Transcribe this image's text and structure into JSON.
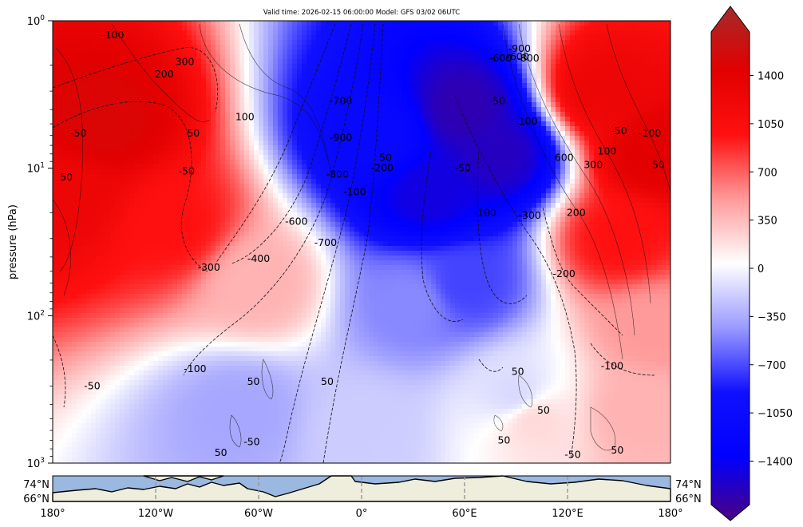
{
  "chart_data": [
    {
      "type": "heatmap",
      "title": "Valid time: 2026-02-15 06:00:00 Model: GFS 03/02 06UTC",
      "xlabel": "",
      "ylabel": "pressure (hPa)",
      "yscale": "log",
      "yinverted": true,
      "ylim": [
        1000,
        1
      ],
      "yticks": [
        {
          "value": 1,
          "label": "10^0"
        },
        {
          "value": 10,
          "label": "10^1"
        },
        {
          "value": 100,
          "label": "10^2"
        },
        {
          "value": 1000,
          "label": "10^3"
        }
      ],
      "xlim": [
        -180,
        180
      ],
      "filled_field_blobs": [
        {
          "lon": -150,
          "p": 5,
          "value": 1250
        },
        {
          "lon": -170,
          "p": 15,
          "value": 1050
        },
        {
          "lon": -110,
          "p": 25,
          "value": 800
        },
        {
          "lon": -60,
          "p": 60,
          "value": 300
        },
        {
          "lon": 40,
          "p": 15,
          "value": -1300
        },
        {
          "lon": 80,
          "p": 8,
          "value": -1400
        },
        {
          "lon": 60,
          "p": 4,
          "value": -1450
        },
        {
          "lon": 10,
          "p": 6,
          "value": -1000
        },
        {
          "lon": 60,
          "p": 60,
          "value": -650
        },
        {
          "lon": 30,
          "p": 80,
          "value": -450
        },
        {
          "lon": 140,
          "p": 3,
          "value": 1050
        },
        {
          "lon": 170,
          "p": 8,
          "value": 1200
        },
        {
          "lon": 150,
          "p": 30,
          "value": 800
        },
        {
          "lon": 170,
          "p": 120,
          "value": 400
        },
        {
          "lon": -70,
          "p": 450,
          "value": -350
        },
        {
          "lon": 0,
          "p": 600,
          "value": -200
        },
        {
          "lon": 90,
          "p": 350,
          "value": -150
        },
        {
          "lon": 100,
          "p": 500,
          "value": 150
        },
        {
          "lon": 160,
          "p": 450,
          "value": 300
        }
      ],
      "contour_labels": [
        {
          "lon": -145,
          "p": 1.25,
          "text": "-100"
        },
        {
          "lon": -103,
          "p": 1.9,
          "text": "300"
        },
        {
          "lon": -115,
          "p": 2.3,
          "text": "200"
        },
        {
          "lon": -165,
          "p": 5.8,
          "text": "-50"
        },
        {
          "lon": -68,
          "p": 4.5,
          "text": "100"
        },
        {
          "lon": -98,
          "p": 5.8,
          "text": "50"
        },
        {
          "lon": -172,
          "p": 11.5,
          "text": "50"
        },
        {
          "lon": -102,
          "p": 10.5,
          "text": "-50"
        },
        {
          "lon": -12,
          "p": 3.5,
          "text": "-700"
        },
        {
          "lon": -12,
          "p": 6.2,
          "text": "-900"
        },
        {
          "lon": 12,
          "p": 10,
          "text": "-200"
        },
        {
          "lon": 14,
          "p": 8.5,
          "text": "50"
        },
        {
          "lon": -14,
          "p": 11,
          "text": "-800"
        },
        {
          "lon": -4,
          "p": 14.5,
          "text": "-100"
        },
        {
          "lon": -38,
          "p": 23,
          "text": "-600"
        },
        {
          "lon": -21,
          "p": 32,
          "text": "-700"
        },
        {
          "lon": -60,
          "p": 41,
          "text": "-400"
        },
        {
          "lon": -89,
          "p": 47,
          "text": "-300"
        },
        {
          "lon": 81,
          "p": 1.8,
          "text": "-600"
        },
        {
          "lon": 92,
          "p": 1.55,
          "text": "-900"
        },
        {
          "lon": 91,
          "p": 1.75,
          "text": "-600"
        },
        {
          "lon": 97,
          "p": 1.8,
          "text": "-800"
        },
        {
          "lon": 79,
          "p": 3.5,
          "text": "-50"
        },
        {
          "lon": 96,
          "p": 4.8,
          "text": "-100"
        },
        {
          "lon": 59,
          "p": 10,
          "text": "-50"
        },
        {
          "lon": 72,
          "p": 20,
          "text": "-100"
        },
        {
          "lon": 98,
          "p": 21,
          "text": "-300"
        },
        {
          "lon": 118,
          "p": 8.5,
          "text": "600"
        },
        {
          "lon": 135,
          "p": 9.5,
          "text": "300"
        },
        {
          "lon": 125,
          "p": 20,
          "text": "200"
        },
        {
          "lon": 118,
          "p": 52,
          "text": "-200"
        },
        {
          "lon": 150,
          "p": 5.6,
          "text": "-50"
        },
        {
          "lon": 168,
          "p": 5.8,
          "text": "-100"
        },
        {
          "lon": 143,
          "p": 7.7,
          "text": "100"
        },
        {
          "lon": 173,
          "p": 9.5,
          "text": "50"
        },
        {
          "lon": -157,
          "p": 300,
          "text": "-50"
        },
        {
          "lon": -97,
          "p": 230,
          "text": "-100"
        },
        {
          "lon": -63,
          "p": 280,
          "text": "50"
        },
        {
          "lon": -20,
          "p": 280,
          "text": "50"
        },
        {
          "lon": 91,
          "p": 240,
          "text": "50"
        },
        {
          "lon": 106,
          "p": 440,
          "text": "50"
        },
        {
          "lon": 83,
          "p": 700,
          "text": "50"
        },
        {
          "lon": 123,
          "p": 880,
          "text": "-50"
        },
        {
          "lon": 146,
          "p": 220,
          "text": "-100"
        },
        {
          "lon": 149,
          "p": 820,
          "text": "50"
        },
        {
          "lon": -82,
          "p": 850,
          "text": "50"
        },
        {
          "lon": -64,
          "p": 720,
          "text": "-50"
        }
      ],
      "inset_map": {
        "type": "map",
        "lat_ticks": [
          "74°N",
          "66°N"
        ],
        "lon_ticks": [
          {
            "value": -180,
            "label": "180°"
          },
          {
            "value": -120,
            "label": "120°W"
          },
          {
            "value": -60,
            "label": "60°W"
          },
          {
            "value": 0,
            "label": "0°"
          },
          {
            "value": 60,
            "label": "60°E"
          },
          {
            "value": 120,
            "label": "120°E"
          },
          {
            "value": 180,
            "label": "180°"
          }
        ]
      },
      "colorbar": {
        "vmin": -1600,
        "vmax": 1600,
        "extend": "both",
        "ticks": [
          {
            "value": 1400,
            "label": "1400"
          },
          {
            "value": 1050,
            "label": "1050"
          },
          {
            "value": 700,
            "label": "700"
          },
          {
            "value": 350,
            "label": "350"
          },
          {
            "value": 0,
            "label": "0"
          },
          {
            "value": -350,
            "label": "−350"
          },
          {
            "value": -700,
            "label": "−700"
          },
          {
            "value": -1050,
            "label": "−1050"
          },
          {
            "value": -1400,
            "label": "−1400"
          }
        ],
        "colormap": [
          {
            "v": -1600,
            "c": "#4b0082"
          },
          {
            "v": -1200,
            "c": "#0000ff"
          },
          {
            "v": -800,
            "c": "#1010ff"
          },
          {
            "v": -400,
            "c": "#9a9aff"
          },
          {
            "v": 0,
            "c": "#ffffff"
          },
          {
            "v": 400,
            "c": "#ff9a9a"
          },
          {
            "v": 800,
            "c": "#ff1010"
          },
          {
            "v": 1200,
            "c": "#e20000"
          },
          {
            "v": 1600,
            "c": "#a52a2a"
          }
        ]
      }
    }
  ]
}
